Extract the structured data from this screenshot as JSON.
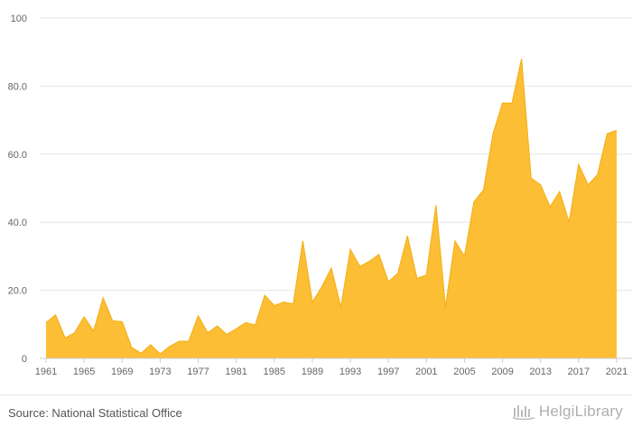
{
  "chart_data": {
    "type": "area",
    "x": [
      1961,
      1962,
      1963,
      1964,
      1965,
      1966,
      1967,
      1968,
      1969,
      1970,
      1971,
      1972,
      1973,
      1974,
      1975,
      1976,
      1977,
      1978,
      1979,
      1980,
      1981,
      1982,
      1983,
      1984,
      1985,
      1986,
      1987,
      1988,
      1989,
      1990,
      1991,
      1992,
      1993,
      1994,
      1995,
      1996,
      1997,
      1998,
      1999,
      2000,
      2001,
      2002,
      2003,
      2004,
      2005,
      2006,
      2007,
      2008,
      2009,
      2010,
      2011,
      2012,
      2013,
      2014,
      2015,
      2016,
      2017,
      2018,
      2019,
      2020,
      2021
    ],
    "values": [
      10.5,
      12.8,
      6.0,
      7.5,
      12.2,
      8.0,
      17.8,
      11.0,
      10.8,
      3.2,
      1.5,
      4.0,
      1.3,
      3.5,
      5.0,
      5.0,
      12.5,
      7.5,
      9.5,
      7.0,
      8.7,
      10.5,
      9.8,
      18.5,
      15.5,
      16.5,
      16.0,
      34.5,
      16.5,
      21.0,
      26.5,
      15.0,
      32.0,
      27.0,
      28.5,
      30.5,
      22.5,
      25.0,
      36.0,
      23.5,
      24.5,
      45.0,
      15.0,
      34.5,
      30.0,
      46.0,
      49.5,
      66.0,
      75.0,
      75.0,
      88.0,
      53.0,
      51.0,
      44.5,
      49.0,
      40.0,
      57.0,
      51.0,
      54.0,
      66.0,
      67.0
    ],
    "y_ticks": [
      "0",
      "20.0",
      "40.0",
      "60.0",
      "80.0",
      "100"
    ],
    "x_ticks": [
      "1961",
      "1965",
      "1969",
      "1973",
      "1977",
      "1981",
      "1985",
      "1989",
      "1993",
      "1997",
      "2001",
      "2005",
      "2009",
      "2013",
      "2017",
      "2021"
    ],
    "ylim": [
      0,
      100
    ],
    "xlim": [
      1961,
      2021
    ],
    "fill_color": "#FBBA2A",
    "line_color": "#F5B21A",
    "grid": true,
    "title": "",
    "xlabel": "",
    "ylabel": ""
  },
  "footer": {
    "source": "Source: National Statistical Office",
    "logo": "HelgiLibrary"
  }
}
